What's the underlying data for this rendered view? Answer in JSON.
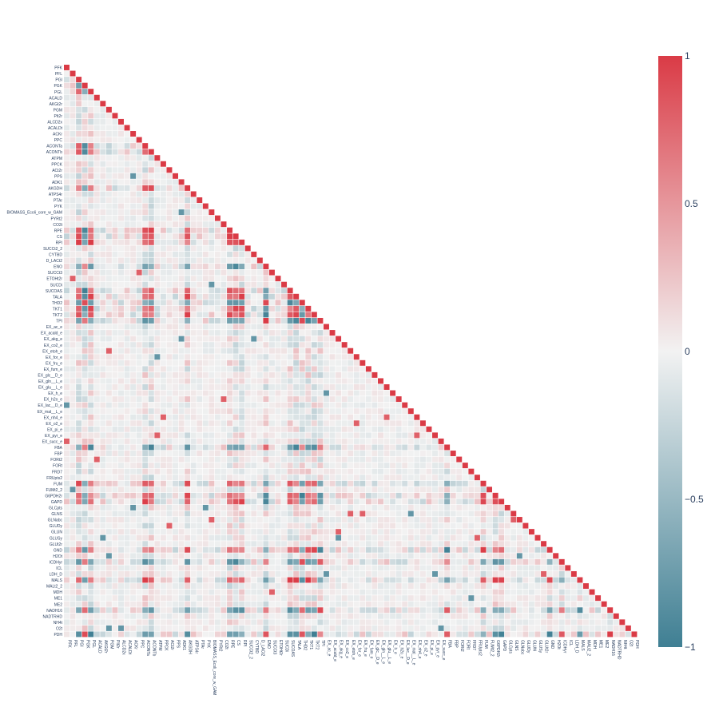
{
  "chart_data": {
    "type": "heatmap",
    "title": "",
    "labels": [
      "PFK",
      "PFL",
      "PGI",
      "PGK",
      "PGL",
      "ACALD",
      "AKGt2r",
      "PGM",
      "PIt2r",
      "ALCD2x",
      "ACALDt",
      "ACKr",
      "PPC",
      "ACONTa",
      "ACONTb",
      "ATPM",
      "PPCK",
      "ACt2r",
      "PPS",
      "ADK1",
      "AKGDH",
      "ATPS4r",
      "PTAr",
      "PYK",
      "BIOMASS_Ecoli_core_w_GAM",
      "PYRt2",
      "CO2t",
      "RPE",
      "CS",
      "RPI",
      "SUCCt2_2",
      "CYTBD",
      "D_LACt2",
      "ENO",
      "SUCCt3",
      "ETOHt2r",
      "SUCDi",
      "SUCOAS",
      "TALA",
      "THD2",
      "TKT1",
      "TKT2",
      "TPI",
      "EX_ac_e",
      "EX_acald_e",
      "EX_akg_e",
      "EX_co2_e",
      "EX_etoh_e",
      "EX_for_e",
      "EX_fru_e",
      "EX_fum_e",
      "EX_glc__D_e",
      "EX_gln__L_e",
      "EX_glu__L_e",
      "EX_h_e",
      "EX_h2o_e",
      "EX_lac__D_e",
      "EX_mal__L_e",
      "EX_nh4_e",
      "EX_o2_e",
      "EX_pi_e",
      "EX_pyr_e",
      "EX_succ_e",
      "FBA",
      "FBP",
      "FORt2",
      "FORt",
      "FRD7",
      "FRUpts2",
      "FUM",
      "FUMt2_2",
      "G6PDH2r",
      "GAPD",
      "GLCpts",
      "GLNS",
      "GLNabc",
      "GLUDy",
      "GLUN",
      "GLUSy",
      "GLUt2r",
      "GND",
      "H2Ot",
      "ICDHyr",
      "ICL",
      "LDH_D",
      "MALS",
      "MALt2_2",
      "MDH",
      "ME1",
      "ME2",
      "NADH16",
      "NADTRHD",
      "NH4t",
      "O2t",
      "PDH"
    ],
    "zrange": [
      -1,
      1
    ],
    "colorbar_ticks": [
      "1",
      "0.5",
      "0",
      "−0.5",
      "−1"
    ],
    "colorscale": [
      "#3f7f93",
      "#f2f2f2",
      "#da3b46"
    ],
    "mask": "lower-triangle",
    "strong_positive_groups": [
      [
        "PGI",
        "PGK",
        "PGL",
        "ACONTa",
        "ACONTb",
        "AKGDH",
        "CS",
        "RPE",
        "RPI",
        "ENO",
        "SUCOAS",
        "TALA",
        "THD2",
        "TKT1",
        "TKT2",
        "TPI",
        "FBA",
        "FUM",
        "G6PDH2r",
        "GAPD",
        "GND",
        "ICDHyr",
        "MALS",
        "NADH16",
        "PDH"
      ]
    ]
  }
}
